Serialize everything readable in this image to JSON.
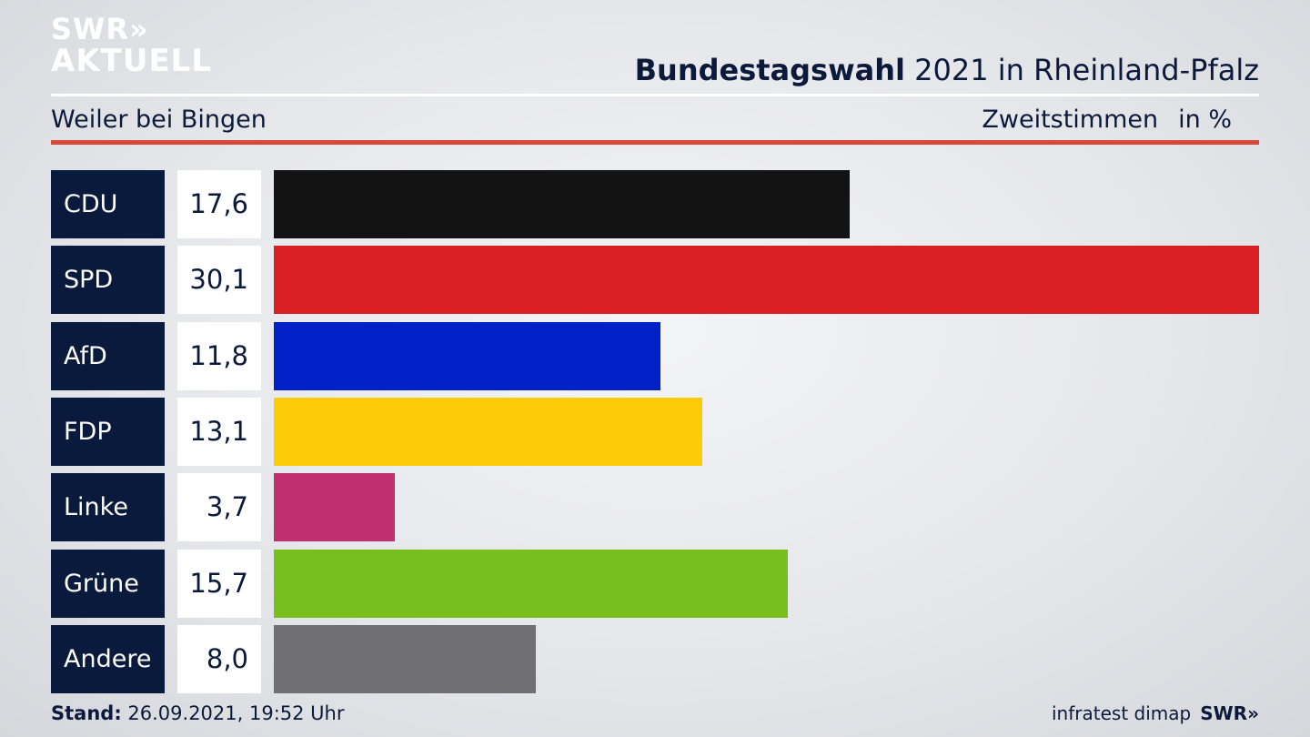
{
  "logo": {
    "line1": "SWR»",
    "line2": "AKTUELL"
  },
  "header": {
    "title_bold": "Bundestagswahl",
    "title_rest": " 2021 in Rheinland-Pfalz",
    "subtitle": "Weiler bei Bingen",
    "measure": "Zweitstimmen",
    "unit": "in %"
  },
  "footer": {
    "stand_label": "Stand:",
    "stand_value": " 26.09.2021, 19:52 Uhr",
    "source": "infratest dimap",
    "source_logo": "SWR»"
  },
  "chart_data": {
    "type": "bar",
    "orientation": "horizontal",
    "categories": [
      "CDU",
      "SPD",
      "AfD",
      "FDP",
      "Linke",
      "Grüne",
      "Andere"
    ],
    "values": [
      17.6,
      30.1,
      11.8,
      13.1,
      3.7,
      15.7,
      8.0
    ],
    "value_labels": [
      "17,6",
      "30,1",
      "11,8",
      "13,1",
      "3,7",
      "15,7",
      "8,0"
    ],
    "colors": [
      "#131313",
      "#d81f21",
      "#0020c8",
      "#fdcc08",
      "#bf3070",
      "#78be1c",
      "#707072"
    ],
    "xlim": [
      0,
      30.1
    ],
    "grid": false,
    "legend": "none"
  }
}
